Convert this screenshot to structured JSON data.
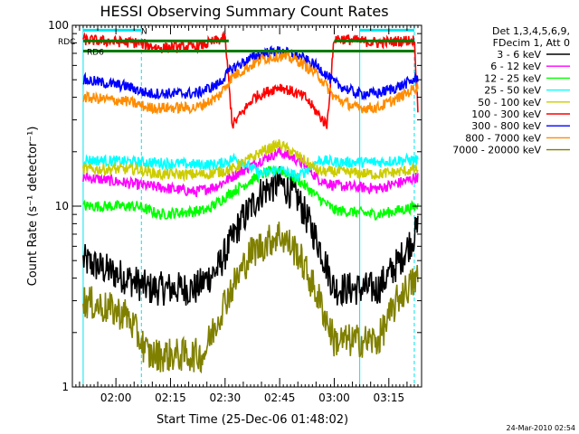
{
  "chart_data": {
    "type": "line",
    "title": "HESSI Observing Summary Count Rates",
    "xlabel": "Start Time (25-Dec-06 01:48:02)",
    "ylabel": "Count Rate (s⁻¹ detector⁻¹)",
    "y_scale": "log",
    "ylim": [
      1,
      100
    ],
    "xlim": [
      "01:48:02",
      "03:24:00"
    ],
    "x_ticks": [
      "02:00",
      "02:15",
      "02:30",
      "02:45",
      "03:00",
      "03:15"
    ],
    "y_ticks": [
      "1",
      "10",
      "100"
    ],
    "legend_header": [
      "Det 1,3,4,5,6,9,",
      "FDecim 1, Att 0"
    ],
    "legend_placement": "right",
    "footer_timestamp": "24-Mar-2010 02:54",
    "annotations": [
      {
        "text": "N",
        "color": "#00e5ee"
      },
      {
        "text": "RDC",
        "color": "#007a00"
      },
      {
        "text": "RD6",
        "color": "#007a00"
      }
    ],
    "vertical_markers": [
      "01:51:00",
      "02:07:00",
      "03:07:00",
      "03:22:00"
    ],
    "series": [
      {
        "name": "3 - 6 keV",
        "color": "#000000",
        "points": [
          [
            "01:51",
            5
          ],
          [
            "02:03",
            4
          ],
          [
            "02:09",
            3.5
          ],
          [
            "02:22",
            3.5
          ],
          [
            "02:28",
            4.5
          ],
          [
            "02:34",
            8
          ],
          [
            "02:40",
            12
          ],
          [
            "02:45",
            13.5
          ],
          [
            "02:50",
            11
          ],
          [
            "02:56",
            6
          ],
          [
            "03:00",
            3.5
          ],
          [
            "03:12",
            3.5
          ],
          [
            "03:18",
            5
          ],
          [
            "03:23",
            7.5
          ]
        ]
      },
      {
        "name": "6 - 12 keV",
        "color": "#ff00ff",
        "points": [
          [
            "01:51",
            14.5
          ],
          [
            "02:08",
            13
          ],
          [
            "02:22",
            12
          ],
          [
            "02:28",
            13
          ],
          [
            "02:33",
            15
          ],
          [
            "02:40",
            18
          ],
          [
            "02:45",
            20
          ],
          [
            "02:50",
            18
          ],
          [
            "02:56",
            14
          ],
          [
            "03:00",
            13
          ],
          [
            "03:12",
            12.5
          ],
          [
            "03:18",
            13.5
          ],
          [
            "03:23",
            14.5
          ]
        ]
      },
      {
        "name": "12 - 25 keV",
        "color": "#00ff00",
        "points": [
          [
            "01:51",
            10
          ],
          [
            "02:06",
            10
          ],
          [
            "02:12",
            9
          ],
          [
            "02:25",
            9.5
          ],
          [
            "02:32",
            12
          ],
          [
            "02:40",
            15
          ],
          [
            "02:45",
            16
          ],
          [
            "02:50",
            14
          ],
          [
            "02:56",
            11
          ],
          [
            "03:00",
            9.5
          ],
          [
            "03:12",
            9
          ],
          [
            "03:18",
            9.5
          ],
          [
            "03:23",
            10
          ]
        ]
      },
      {
        "name": "25 - 50 keV",
        "color": "#00ffff",
        "points": [
          [
            "01:51",
            18
          ],
          [
            "02:08",
            17.5
          ],
          [
            "02:22",
            17
          ],
          [
            "02:28",
            17
          ],
          [
            "02:33",
            18.5
          ],
          [
            "02:40",
            15
          ],
          [
            "02:45",
            16
          ],
          [
            "02:50",
            14.5
          ],
          [
            "02:56",
            18
          ],
          [
            "03:00",
            17.5
          ],
          [
            "03:12",
            17.5
          ],
          [
            "03:18",
            18
          ],
          [
            "03:23",
            18
          ]
        ]
      },
      {
        "name": "50 - 100 keV",
        "color": "#cccc00",
        "points": [
          [
            "01:51",
            16
          ],
          [
            "02:06",
            16
          ],
          [
            "02:12",
            15
          ],
          [
            "02:25",
            15
          ],
          [
            "02:32",
            16
          ],
          [
            "02:40",
            20
          ],
          [
            "02:45",
            22
          ],
          [
            "02:50",
            19
          ],
          [
            "02:56",
            15.5
          ],
          [
            "03:00",
            15.5
          ],
          [
            "03:12",
            15
          ],
          [
            "03:18",
            15.5
          ],
          [
            "03:23",
            16
          ]
        ]
      },
      {
        "name": "100 - 300 keV",
        "color": "#ff0000",
        "points": [
          [
            "01:51",
            83
          ],
          [
            "02:06",
            80
          ],
          [
            "02:12",
            75
          ],
          [
            "02:22",
            76
          ],
          [
            "02:30",
            85
          ],
          [
            "02:32",
            28
          ],
          [
            "02:38",
            40
          ],
          [
            "02:45",
            46
          ],
          [
            "02:52",
            40
          ],
          [
            "02:58",
            28
          ],
          [
            "03:00",
            85
          ],
          [
            "03:12",
            80
          ],
          [
            "03:18",
            82
          ],
          [
            "03:22",
            83
          ],
          [
            "03:23",
            34
          ]
        ]
      },
      {
        "name": "300 - 800 keV",
        "color": "#0000ff",
        "points": [
          [
            "01:51",
            50
          ],
          [
            "02:03",
            46
          ],
          [
            "02:09",
            42
          ],
          [
            "02:22",
            42
          ],
          [
            "02:28",
            47
          ],
          [
            "02:32",
            58
          ],
          [
            "02:40",
            70
          ],
          [
            "02:45",
            72
          ],
          [
            "02:50",
            68
          ],
          [
            "02:56",
            58
          ],
          [
            "03:00",
            48
          ],
          [
            "03:06",
            42
          ],
          [
            "03:12",
            42
          ],
          [
            "03:18",
            46
          ],
          [
            "03:23",
            51
          ]
        ]
      },
      {
        "name": "800 - 7000 keV",
        "color": "#ff8c00",
        "points": [
          [
            "01:51",
            40
          ],
          [
            "02:03",
            38
          ],
          [
            "02:09",
            35
          ],
          [
            "02:22",
            35
          ],
          [
            "02:28",
            40
          ],
          [
            "02:32",
            52
          ],
          [
            "02:40",
            65
          ],
          [
            "02:45",
            68
          ],
          [
            "02:50",
            64
          ],
          [
            "02:56",
            52
          ],
          [
            "03:00",
            40
          ],
          [
            "03:06",
            35
          ],
          [
            "03:12",
            35
          ],
          [
            "03:18",
            40
          ],
          [
            "03:23",
            46
          ]
        ]
      },
      {
        "name": "7000 - 20000 keV",
        "color": "#808000",
        "points": [
          [
            "01:51",
            3
          ],
          [
            "02:03",
            2.5
          ],
          [
            "02:09",
            1.5
          ],
          [
            "02:24",
            1.5
          ],
          [
            "02:30",
            3
          ],
          [
            "02:37",
            5.5
          ],
          [
            "02:45",
            7
          ],
          [
            "02:50",
            5.5
          ],
          [
            "02:56",
            3
          ],
          [
            "03:00",
            1.8
          ],
          [
            "03:12",
            1.8
          ],
          [
            "03:18",
            3.2
          ],
          [
            "03:23",
            4
          ]
        ]
      }
    ],
    "flag_bars": [
      {
        "label": "N",
        "color": "#00e5ee",
        "value": 94,
        "ranges": [
          [
            "01:51",
            "02:07"
          ],
          [
            "03:07",
            "03:22"
          ]
        ]
      },
      {
        "label": "RDC",
        "color": "#007a00",
        "value": 82,
        "ranges": [
          [
            "01:51",
            "02:31"
          ],
          [
            "03:00",
            "03:22"
          ]
        ]
      },
      {
        "label": "RD6",
        "color": "#007a00",
        "value": 72,
        "ranges": [
          [
            "01:51",
            "03:22"
          ]
        ]
      }
    ]
  }
}
